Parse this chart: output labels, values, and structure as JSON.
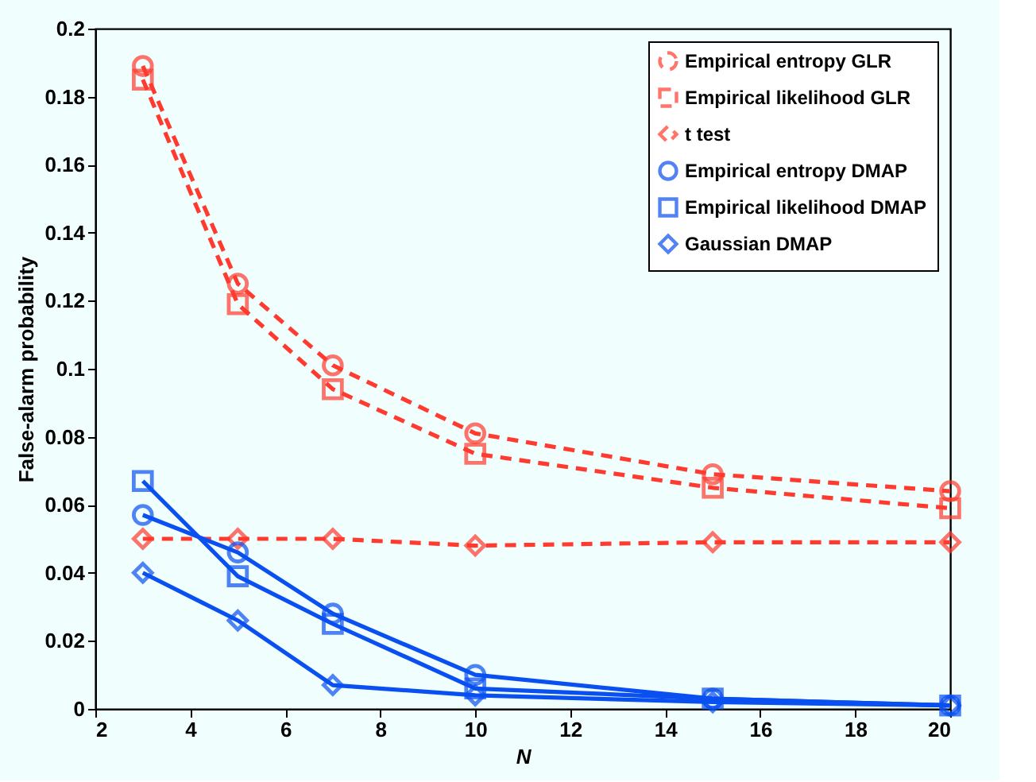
{
  "chart_data": {
    "type": "line",
    "xlabel": "N",
    "ylabel": "False-alarm probability",
    "x": [
      3,
      5,
      7,
      10,
      15,
      20
    ],
    "xlim": [
      2,
      20
    ],
    "xticks": [
      2,
      4,
      6,
      8,
      10,
      12,
      14,
      16,
      18,
      20
    ],
    "ylim": [
      0,
      0.2
    ],
    "yticks": [
      0,
      0.02,
      0.04,
      0.06,
      0.08,
      0.1,
      0.12,
      0.14,
      0.16,
      0.18,
      0.2
    ],
    "grid": false,
    "legend": "top right",
    "series": [
      {
        "name": "Empirical entropy GLR",
        "color": "#ff3b2f",
        "marker": "circle",
        "line_style": "dashed",
        "values": [
          0.189,
          0.125,
          0.101,
          0.081,
          0.069,
          0.064
        ]
      },
      {
        "name": "Empirical likelihood GLR",
        "color": "#ff3b2f",
        "marker": "square",
        "line_style": "dashed",
        "values": [
          0.185,
          0.119,
          0.094,
          0.075,
          0.065,
          0.059
        ]
      },
      {
        "name": "t test",
        "color": "#ff3b2f",
        "marker": "diamond",
        "line_style": "dashed",
        "values": [
          0.05,
          0.05,
          0.05,
          0.048,
          0.049,
          0.049
        ]
      },
      {
        "name": "Empirical entropy DMAP",
        "color": "#0a50f0",
        "marker": "circle",
        "line_style": "solid",
        "values": [
          0.057,
          0.046,
          0.028,
          0.01,
          0.003,
          0.001
        ]
      },
      {
        "name": "Empirical likelihood DMAP",
        "color": "#0a50f0",
        "marker": "square",
        "line_style": "solid",
        "values": [
          0.067,
          0.039,
          0.025,
          0.006,
          0.003,
          0.001
        ]
      },
      {
        "name": "Gaussian DMAP",
        "color": "#0a50f0",
        "marker": "diamond",
        "line_style": "solid",
        "values": [
          0.04,
          0.026,
          0.007,
          0.004,
          0.002,
          0.001
        ]
      }
    ]
  }
}
